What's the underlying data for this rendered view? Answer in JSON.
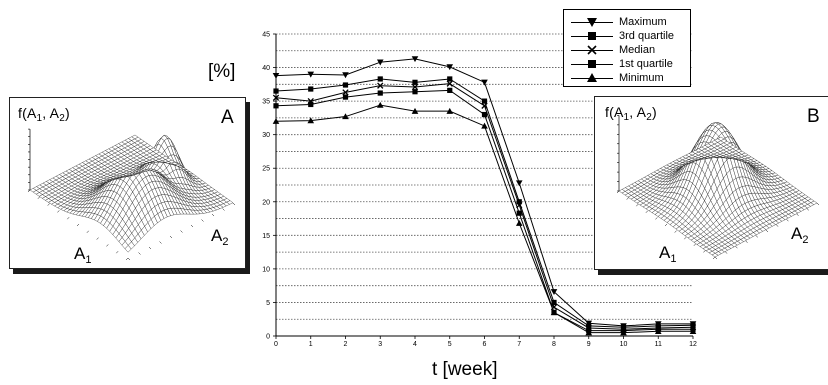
{
  "chart_data": {
    "type": "line",
    "y_unit_label": "[%]",
    "xlabel": "t [week]",
    "x": [
      0,
      1,
      2,
      3,
      4,
      5,
      6,
      7,
      8,
      9,
      10,
      11,
      12
    ],
    "x_ticks": [
      "0",
      "1",
      "2",
      "3",
      "4",
      "5",
      "6",
      "7",
      "8",
      "9",
      "10",
      "11",
      "12"
    ],
    "y_ticks": [
      "0",
      "5",
      "10",
      "15",
      "20",
      "25",
      "30",
      "35",
      "40",
      "45"
    ],
    "xlim": [
      0,
      12
    ],
    "ylim": [
      0,
      45
    ],
    "grid": "horizontal dotted lines",
    "legend_position": "top-right",
    "series": [
      {
        "name": "Maximum",
        "marker": "triangle-down",
        "values": [
          38.8,
          39.0,
          38.9,
          40.8,
          41.3,
          40.1,
          37.8,
          22.8,
          6.6,
          1.9,
          1.5,
          1.8,
          1.8
        ]
      },
      {
        "name": "3rd quartile",
        "marker": "square",
        "values": [
          36.5,
          36.8,
          37.4,
          38.3,
          37.8,
          38.3,
          35.0,
          20.0,
          5.0,
          1.5,
          1.3,
          1.5,
          1.6
        ]
      },
      {
        "name": "Median",
        "marker": "x",
        "values": [
          35.5,
          35.0,
          36.3,
          37.3,
          37.1,
          37.6,
          34.3,
          19.5,
          4.3,
          1.2,
          1.0,
          1.2,
          1.3
        ]
      },
      {
        "name": "1st quartile",
        "marker": "square",
        "values": [
          34.3,
          34.5,
          35.6,
          36.2,
          36.4,
          36.6,
          33.0,
          18.3,
          3.5,
          0.8,
          0.8,
          1.0,
          1.0
        ]
      },
      {
        "name": "Minimum",
        "marker": "triangle-up",
        "values": [
          32.0,
          32.1,
          32.7,
          34.4,
          33.5,
          33.5,
          31.3,
          16.8,
          3.5,
          0.5,
          0.5,
          0.7,
          0.7
        ]
      }
    ]
  },
  "inset_a": {
    "function_label": "f(A",
    "function_sub1": "1",
    "function_mid": ", A",
    "function_sub2": "2",
    "function_end": ")",
    "corner_label": "A",
    "axis1_label": "A",
    "axis1_sub": "1",
    "axis2_label": "A",
    "axis2_sub": "2"
  },
  "inset_b": {
    "function_label": "f(A",
    "function_sub1": "1",
    "function_mid": ", A",
    "function_sub2": "2",
    "function_end": ")",
    "corner_label": "B",
    "axis1_label": "A",
    "axis1_sub": "1",
    "axis2_label": "A",
    "axis2_sub": "2"
  }
}
